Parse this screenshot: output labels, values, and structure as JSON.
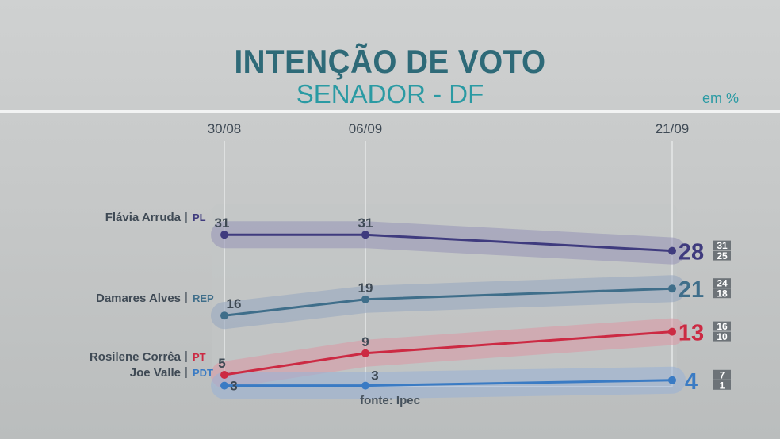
{
  "header": {
    "title": "INTENÇÃO DE VOTO",
    "subtitle": "SENADOR - DF",
    "unit": "em %"
  },
  "source": "fonte: Ipec",
  "chart_data": {
    "type": "line",
    "x": [
      "30/08",
      "06/09",
      "21/09"
    ],
    "series": [
      {
        "name": "Flávia Arruda",
        "party": "PL",
        "values": [
          31,
          31,
          28
        ],
        "range": [
          31,
          25
        ],
        "color": "#3f3b7e",
        "band": "#9a97b7"
      },
      {
        "name": "Damares Alves",
        "party": "REP",
        "values": [
          16,
          19,
          21
        ],
        "range": [
          24,
          18
        ],
        "color": "#3f6e8a",
        "band": "#98a9bf"
      },
      {
        "name": "Rosilene Corrêa",
        "party": "PT",
        "values": [
          5,
          9,
          13
        ],
        "range": [
          16,
          10
        ],
        "color": "#cc2a43",
        "band": "#d89ba6"
      },
      {
        "name": "Joe Valle",
        "party": "PDT",
        "values": [
          3,
          3,
          4
        ],
        "range": [
          7,
          1
        ],
        "color": "#3a7bc4",
        "band": "#9bb2d4"
      }
    ]
  }
}
